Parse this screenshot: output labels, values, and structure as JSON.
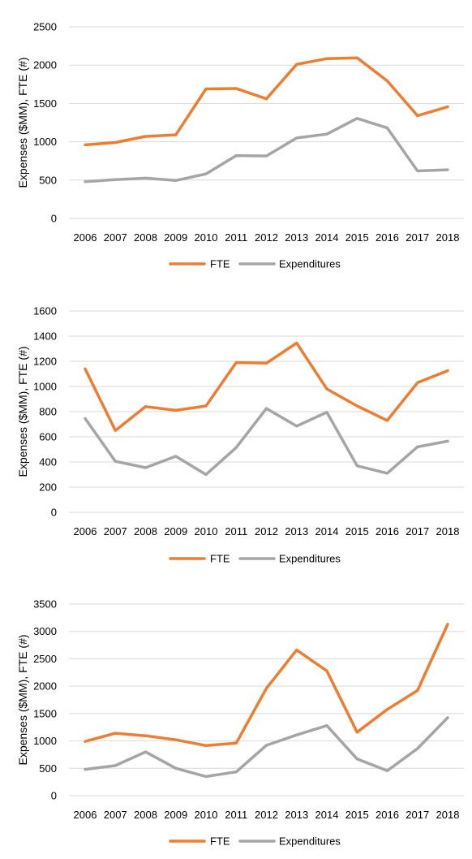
{
  "chart_data": [
    {
      "type": "line",
      "ylabel": "Expenses ($MM), FTE (#)",
      "ylim": [
        0,
        2500
      ],
      "yticks": [
        0,
        500,
        1000,
        1500,
        2000,
        2500
      ],
      "grid": true,
      "legend": "bottom-center",
      "categories": [
        "2006",
        "2007",
        "2008",
        "2009",
        "2010",
        "2011",
        "2012",
        "2013",
        "2014",
        "2015",
        "2016",
        "2017",
        "2018"
      ],
      "series": [
        {
          "name": "FTE",
          "color": "#ed7d31",
          "values": [
            960,
            990,
            1070,
            1090,
            1690,
            1695,
            1560,
            2010,
            2085,
            2095,
            1795,
            1340,
            1455
          ]
        },
        {
          "name": "Expenditures",
          "color": "#a5a5a5",
          "values": [
            480,
            505,
            525,
            495,
            580,
            820,
            815,
            1050,
            1100,
            1305,
            1180,
            620,
            635
          ]
        }
      ]
    },
    {
      "type": "line",
      "ylabel": "Expenses ($MM), FTE (#)",
      "ylim": [
        0,
        1600
      ],
      "yticks": [
        0,
        200,
        400,
        600,
        800,
        1000,
        1200,
        1400,
        1600
      ],
      "grid": true,
      "legend": "bottom-center",
      "categories": [
        "2006",
        "2007",
        "2008",
        "2009",
        "2010",
        "2011",
        "2012",
        "2013",
        "2014",
        "2015",
        "2016",
        "2017",
        "2018"
      ],
      "series": [
        {
          "name": "FTE",
          "color": "#ed7d31",
          "values": [
            1140,
            650,
            840,
            810,
            845,
            1190,
            1185,
            1345,
            980,
            845,
            730,
            1030,
            1125
          ]
        },
        {
          "name": "Expenditures",
          "color": "#a5a5a5",
          "values": [
            745,
            405,
            355,
            445,
            300,
            515,
            825,
            685,
            795,
            370,
            310,
            520,
            565
          ]
        }
      ]
    },
    {
      "type": "line",
      "ylabel": "Expenses ($MM), FTE (#)",
      "ylim": [
        0,
        3500
      ],
      "yticks": [
        0,
        500,
        1000,
        1500,
        2000,
        2500,
        3000,
        3500
      ],
      "grid": true,
      "legend": "bottom-center",
      "categories": [
        "2006",
        "2007",
        "2008",
        "2009",
        "2010",
        "2011",
        "2012",
        "2013",
        "2014",
        "2015",
        "2016",
        "2017",
        "2018"
      ],
      "series": [
        {
          "name": "FTE",
          "color": "#ed7d31",
          "values": [
            990,
            1140,
            1095,
            1020,
            915,
            960,
            1960,
            2660,
            2280,
            1160,
            1575,
            1920,
            3130
          ]
        },
        {
          "name": "Expenditures",
          "color": "#a5a5a5",
          "values": [
            480,
            550,
            800,
            500,
            350,
            435,
            920,
            1110,
            1280,
            670,
            455,
            860,
            1425
          ]
        }
      ]
    }
  ]
}
